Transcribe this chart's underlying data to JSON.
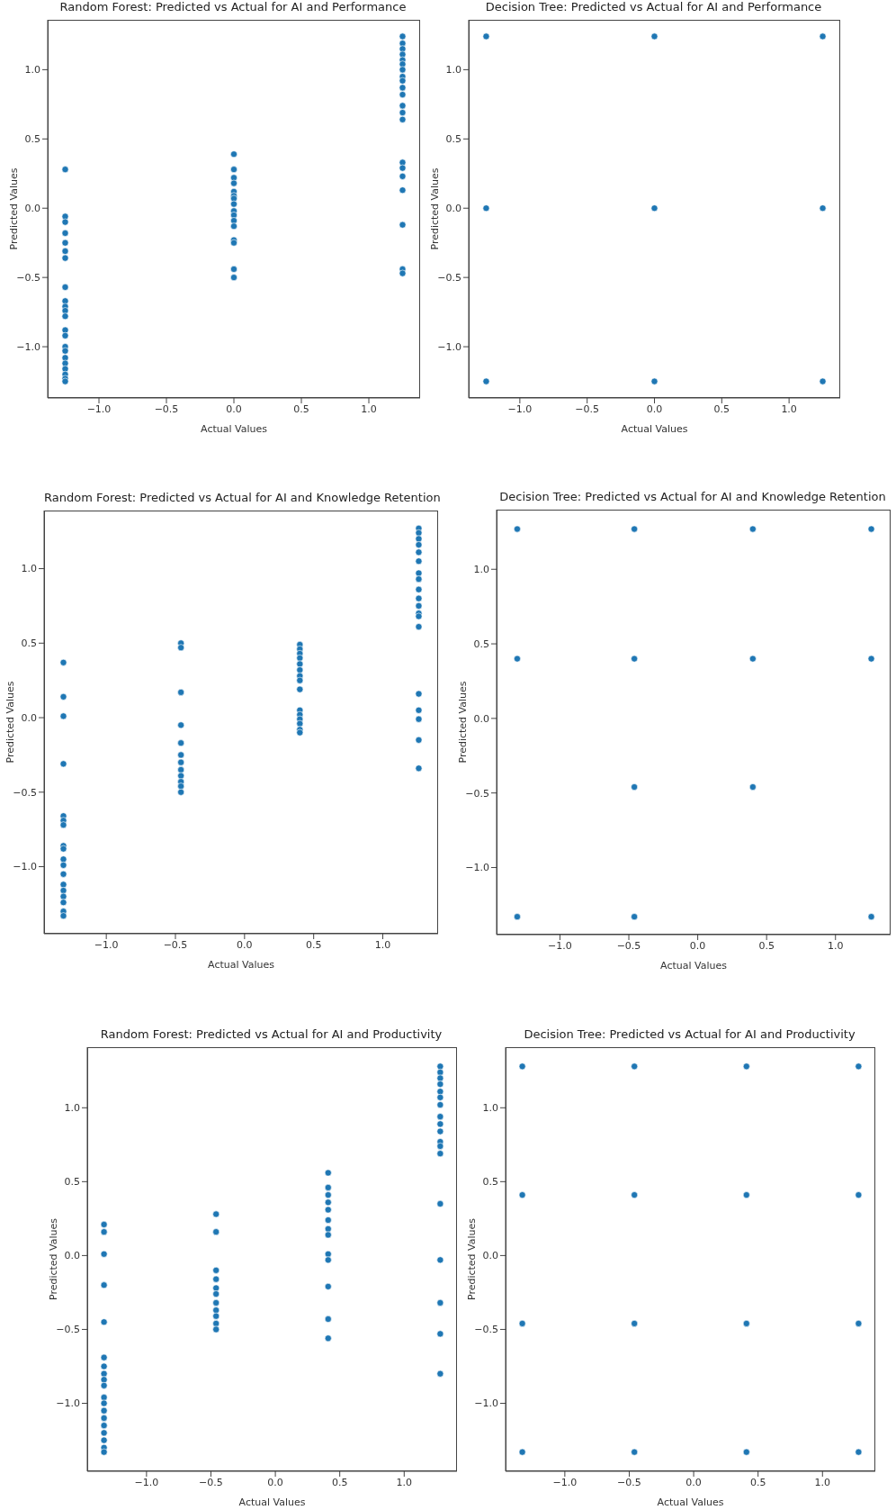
{
  "chart_data": [
    {
      "type": "scatter",
      "title": "Random Forest: Predicted vs Actual for AI and Performance",
      "xlabel": "Actual Values",
      "ylabel": "Predicted Values",
      "marker": "circle",
      "xlim": [
        -1.38,
        1.38
      ],
      "ylim": [
        -1.37,
        1.36
      ],
      "xticks": [
        {
          "value": -1,
          "label": "−1.0"
        },
        {
          "value": -0.5,
          "label": "−0.5"
        },
        {
          "value": 0,
          "label": "0.0"
        },
        {
          "value": 0.5,
          "label": "0.5"
        },
        {
          "value": 1,
          "label": "1.0"
        }
      ],
      "yticks": [
        {
          "value": -1,
          "label": "−1.0"
        },
        {
          "value": -0.5,
          "label": "−0.5"
        },
        {
          "value": 0,
          "label": "0.0"
        },
        {
          "value": 0.5,
          "label": "0.5"
        },
        {
          "value": 1,
          "label": "1.0"
        }
      ],
      "series": [
        {
          "color": "#1f77b4",
          "x": [
            -1.25,
            -1.25,
            -1.25,
            -1.25,
            -1.25,
            -1.25,
            -1.25,
            -1.25,
            -1.25,
            -1.25,
            -1.25,
            -1.25,
            -1.25,
            -1.25,
            -1.25,
            -1.25,
            -1.25,
            -1.25,
            -1.25,
            -1.25,
            -1.25,
            -1.25
          ],
          "values": [
            0.28,
            -0.06,
            -0.1,
            -0.18,
            -0.25,
            -0.31,
            -0.36,
            -0.57,
            -0.67,
            -0.71,
            -0.74,
            -0.78,
            -0.88,
            -0.92,
            -1.0,
            -1.03,
            -1.08,
            -1.12,
            -1.16,
            -1.2,
            -1.23,
            -1.25
          ]
        },
        {
          "color": "#1f77b4",
          "x": [
            0,
            0,
            0,
            0,
            0,
            0,
            0,
            0,
            0,
            0,
            0,
            0,
            0,
            0,
            0,
            0
          ],
          "values": [
            0.39,
            0.28,
            0.22,
            0.18,
            0.12,
            0.09,
            0.07,
            0.03,
            -0.02,
            -0.05,
            -0.09,
            -0.13,
            -0.23,
            -0.25,
            -0.44,
            -0.5
          ]
        },
        {
          "color": "#1f77b4",
          "x": [
            1.25,
            1.25,
            1.25,
            1.25,
            1.25,
            1.25,
            1.25,
            1.25,
            1.25,
            1.25,
            1.25,
            1.25,
            1.25,
            1.25,
            1.25,
            1.25,
            1.25,
            1.25,
            1.25,
            1.25,
            1.25
          ],
          "values": [
            1.24,
            1.19,
            1.15,
            1.11,
            1.07,
            1.04,
            1.0,
            0.95,
            0.92,
            0.87,
            0.82,
            0.74,
            0.69,
            0.64,
            0.33,
            0.29,
            0.23,
            0.13,
            -0.12,
            -0.44,
            -0.47
          ]
        }
      ]
    },
    {
      "type": "scatter",
      "title": "Decision Tree: Predicted vs Actual for AI and Performance",
      "xlabel": "Actual Values",
      "ylabel": "Predicted Values",
      "marker": "circle",
      "xlim": [
        -1.38,
        1.38
      ],
      "ylim": [
        -1.37,
        1.36
      ],
      "xticks": [
        {
          "value": -1,
          "label": "−1.0"
        },
        {
          "value": -0.5,
          "label": "−0.5"
        },
        {
          "value": 0,
          "label": "0.0"
        },
        {
          "value": 0.5,
          "label": "0.5"
        },
        {
          "value": 1,
          "label": "1.0"
        }
      ],
      "yticks": [
        {
          "value": -1,
          "label": "−1.0"
        },
        {
          "value": -0.5,
          "label": "−0.5"
        },
        {
          "value": 0,
          "label": "0.0"
        },
        {
          "value": 0.5,
          "label": "0.5"
        },
        {
          "value": 1,
          "label": "1.0"
        }
      ],
      "series": [
        {
          "color": "#1f77b4",
          "x": [
            -1.25,
            -1.25,
            -1.25,
            0,
            0,
            0,
            1.25,
            1.25,
            1.25
          ],
          "values": [
            1.24,
            0,
            -1.25,
            1.24,
            0,
            -1.25,
            1.24,
            0,
            -1.25
          ]
        }
      ]
    },
    {
      "type": "scatter",
      "title": "Random Forest: Predicted vs Actual for AI and Knowledge Retention",
      "xlabel": "Actual Values",
      "ylabel": "Predicted Values",
      "marker": "circle",
      "xlim": [
        -1.45,
        1.4
      ],
      "ylim": [
        -1.45,
        1.39
      ],
      "xticks": [
        {
          "value": -1,
          "label": "−1.0"
        },
        {
          "value": -0.5,
          "label": "−0.5"
        },
        {
          "value": 0,
          "label": "0.0"
        },
        {
          "value": 0.5,
          "label": "0.5"
        },
        {
          "value": 1,
          "label": "1.0"
        }
      ],
      "yticks": [
        {
          "value": -1,
          "label": "−1.0"
        },
        {
          "value": -0.5,
          "label": "−0.5"
        },
        {
          "value": 0,
          "label": "0.0"
        },
        {
          "value": 0.5,
          "label": "0.5"
        },
        {
          "value": 1,
          "label": "1.0"
        }
      ],
      "series": [
        {
          "color": "#1f77b4",
          "x": [
            -1.31,
            -1.31,
            -1.31,
            -1.31,
            -1.31,
            -1.31,
            -1.31,
            -1.31,
            -1.31,
            -1.31,
            -1.31,
            -1.31,
            -1.31,
            -1.31,
            -1.31,
            -1.31,
            -1.31,
            -1.31
          ],
          "values": [
            0.37,
            0.14,
            0.01,
            -0.31,
            -0.66,
            -0.69,
            -0.72,
            -0.86,
            -0.88,
            -0.95,
            -0.99,
            -1.05,
            -1.12,
            -1.16,
            -1.2,
            -1.24,
            -1.3,
            -1.33
          ]
        },
        {
          "color": "#1f77b4",
          "x": [
            -0.46,
            -0.46,
            -0.46,
            -0.46,
            -0.46,
            -0.46,
            -0.46,
            -0.46,
            -0.46,
            -0.46,
            -0.46,
            -0.46
          ],
          "values": [
            0.5,
            0.47,
            0.17,
            -0.05,
            -0.17,
            -0.25,
            -0.3,
            -0.35,
            -0.39,
            -0.43,
            -0.46,
            -0.5
          ]
        },
        {
          "color": "#1f77b4",
          "x": [
            0.4,
            0.4,
            0.4,
            0.4,
            0.4,
            0.4,
            0.4,
            0.4,
            0.4,
            0.4,
            0.4,
            0.4,
            0.4,
            0.4,
            0.4
          ],
          "values": [
            0.49,
            0.46,
            0.43,
            0.4,
            0.36,
            0.32,
            0.28,
            0.25,
            0.19,
            0.05,
            0.02,
            -0.01,
            -0.04,
            -0.08,
            -0.1
          ]
        },
        {
          "color": "#1f77b4",
          "x": [
            1.26,
            1.26,
            1.26,
            1.26,
            1.26,
            1.26,
            1.26,
            1.26,
            1.26,
            1.26,
            1.26,
            1.26,
            1.26,
            1.26,
            1.26,
            1.26,
            1.26,
            1.26,
            1.26
          ],
          "values": [
            1.27,
            1.24,
            1.2,
            1.16,
            1.11,
            1.05,
            0.97,
            0.93,
            0.86,
            0.8,
            0.75,
            0.7,
            0.68,
            0.61,
            0.16,
            0.05,
            -0.01,
            -0.15,
            -0.34
          ]
        }
      ]
    },
    {
      "type": "scatter",
      "title": "Decision Tree: Predicted vs Actual for AI and Knowledge Retention",
      "xlabel": "Actual Values",
      "ylabel": "Predicted Values",
      "marker": "circle",
      "xlim": [
        -1.46,
        1.4
      ],
      "ylim": [
        -1.45,
        1.4
      ],
      "xticks": [
        {
          "value": -1,
          "label": "−1.0"
        },
        {
          "value": -0.5,
          "label": "−0.5"
        },
        {
          "value": 0,
          "label": "0.0"
        },
        {
          "value": 0.5,
          "label": "0.5"
        },
        {
          "value": 1,
          "label": "1.0"
        }
      ],
      "yticks": [
        {
          "value": -1,
          "label": "−1.0"
        },
        {
          "value": -0.5,
          "label": "−0.5"
        },
        {
          "value": 0,
          "label": "0.0"
        },
        {
          "value": 0.5,
          "label": "0.5"
        },
        {
          "value": 1,
          "label": "1.0"
        }
      ],
      "series": [
        {
          "color": "#1f77b4",
          "x": [
            -1.31,
            -1.31,
            -1.31,
            -0.46,
            -0.46,
            -0.46,
            -0.46,
            0.4,
            0.4,
            0.4,
            1.26,
            1.26,
            1.26
          ],
          "values": [
            1.27,
            0.4,
            -1.33,
            1.27,
            0.4,
            -0.46,
            -1.33,
            1.27,
            0.4,
            -0.46,
            1.27,
            0.4,
            -1.33
          ]
        }
      ]
    },
    {
      "type": "scatter",
      "title": "Random Forest: Predicted vs Actual for AI and Productivity",
      "xlabel": "Actual Values",
      "ylabel": "Predicted Values",
      "marker": "circle",
      "xlim": [
        -1.46,
        1.41
      ],
      "ylim": [
        -1.46,
        1.41
      ],
      "xticks": [
        {
          "value": -1,
          "label": "−1.0"
        },
        {
          "value": -0.5,
          "label": "−0.5"
        },
        {
          "value": 0,
          "label": "0.0"
        },
        {
          "value": 0.5,
          "label": "0.5"
        },
        {
          "value": 1,
          "label": "1.0"
        }
      ],
      "yticks": [
        {
          "value": -1,
          "label": "−1.0"
        },
        {
          "value": -0.5,
          "label": "−0.5"
        },
        {
          "value": 0,
          "label": "0.0"
        },
        {
          "value": 0.5,
          "label": "0.5"
        },
        {
          "value": 1,
          "label": "1.0"
        }
      ],
      "series": [
        {
          "color": "#1f77b4",
          "x": [
            -1.33,
            -1.33,
            -1.33,
            -1.33,
            -1.33,
            -1.33,
            -1.33,
            -1.33,
            -1.33,
            -1.33,
            -1.33,
            -1.33,
            -1.33,
            -1.33,
            -1.33,
            -1.33,
            -1.33,
            -1.33,
            -1.33
          ],
          "values": [
            0.21,
            0.16,
            0.01,
            -0.2,
            -0.45,
            -0.69,
            -0.75,
            -0.8,
            -0.84,
            -0.88,
            -0.96,
            -1.0,
            -1.05,
            -1.1,
            -1.15,
            -1.2,
            -1.25,
            -1.3,
            -1.33
          ]
        },
        {
          "color": "#1f77b4",
          "x": [
            -0.46,
            -0.46,
            -0.46,
            -0.46,
            -0.46,
            -0.46,
            -0.46,
            -0.46,
            -0.46,
            -0.46,
            -0.46
          ],
          "values": [
            0.28,
            0.16,
            -0.1,
            -0.16,
            -0.22,
            -0.26,
            -0.32,
            -0.37,
            -0.41,
            -0.46,
            -0.5
          ]
        },
        {
          "color": "#1f77b4",
          "x": [
            0.41,
            0.41,
            0.41,
            0.41,
            0.41,
            0.41,
            0.41,
            0.41,
            0.41,
            0.41,
            0.41,
            0.41,
            0.41
          ],
          "values": [
            0.56,
            0.46,
            0.41,
            0.36,
            0.31,
            0.24,
            0.18,
            0.14,
            0.01,
            -0.03,
            -0.21,
            -0.43,
            -0.56
          ]
        },
        {
          "color": "#1f77b4",
          "x": [
            1.28,
            1.28,
            1.28,
            1.28,
            1.28,
            1.28,
            1.28,
            1.28,
            1.28,
            1.28,
            1.28,
            1.28,
            1.28,
            1.28,
            1.28,
            1.28,
            1.28,
            1.28
          ],
          "values": [
            1.28,
            1.24,
            1.2,
            1.16,
            1.11,
            1.07,
            1.02,
            0.94,
            0.89,
            0.84,
            0.77,
            0.74,
            0.69,
            0.35,
            -0.03,
            -0.32,
            -0.53,
            -0.8
          ]
        }
      ]
    },
    {
      "type": "scatter",
      "title": "Decision Tree: Predicted vs Actual for AI and Productivity",
      "xlabel": "Actual Values",
      "ylabel": "Predicted Values",
      "marker": "circle",
      "xlim": [
        -1.46,
        1.41
      ],
      "ylim": [
        -1.46,
        1.41
      ],
      "xticks": [
        {
          "value": -1,
          "label": "−1.0"
        },
        {
          "value": -0.5,
          "label": "−0.5"
        },
        {
          "value": 0,
          "label": "0.0"
        },
        {
          "value": 0.5,
          "label": "0.5"
        },
        {
          "value": 1,
          "label": "1.0"
        }
      ],
      "yticks": [
        {
          "value": -1,
          "label": "−1.0"
        },
        {
          "value": -0.5,
          "label": "−0.5"
        },
        {
          "value": 0,
          "label": "0.0"
        },
        {
          "value": 0.5,
          "label": "0.5"
        },
        {
          "value": 1,
          "label": "1.0"
        }
      ],
      "series": [
        {
          "color": "#1f77b4",
          "x": [
            -1.33,
            -1.33,
            -1.33,
            -1.33,
            -0.46,
            -0.46,
            -0.46,
            -0.46,
            0.41,
            0.41,
            0.41,
            0.41,
            1.28,
            1.28,
            1.28,
            1.28
          ],
          "values": [
            1.28,
            0.41,
            -0.46,
            -1.33,
            1.28,
            0.41,
            -0.46,
            -1.33,
            1.28,
            0.41,
            -0.46,
            -1.33,
            1.28,
            0.41,
            -0.46,
            -1.33
          ]
        }
      ]
    }
  ]
}
